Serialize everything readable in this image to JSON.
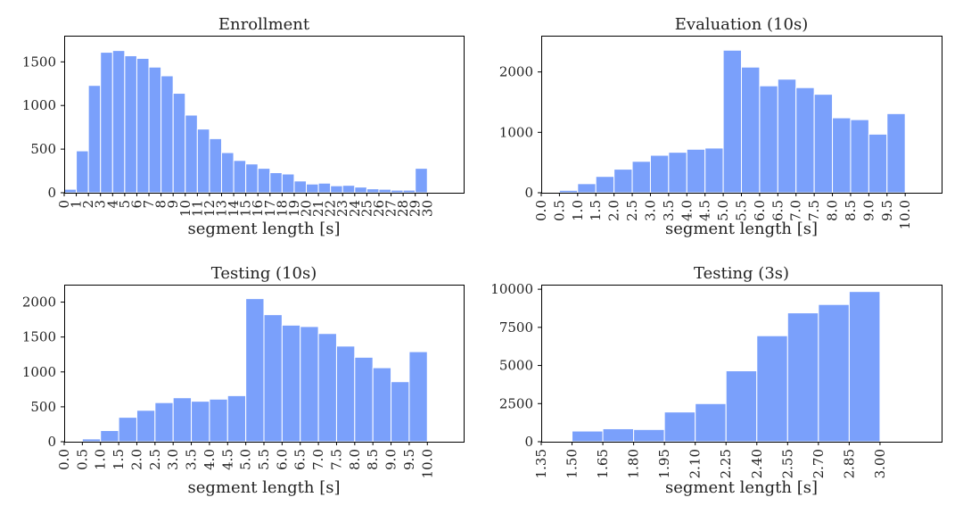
{
  "style": {
    "bar_color": "#7aa0fb"
  },
  "chart_data": [
    {
      "type": "bar",
      "title": "Enrollment",
      "xlabel": "segment length [s]",
      "ylabel": "",
      "bin_edges": [
        0,
        1,
        2,
        3,
        4,
        5,
        6,
        7,
        8,
        9,
        10,
        11,
        12,
        13,
        14,
        15,
        16,
        17,
        18,
        19,
        20,
        21,
        22,
        23,
        24,
        25,
        26,
        27,
        28,
        29,
        30
      ],
      "values": [
        40,
        480,
        1230,
        1610,
        1630,
        1570,
        1540,
        1440,
        1340,
        1140,
        890,
        730,
        620,
        460,
        370,
        330,
        280,
        230,
        215,
        135,
        100,
        110,
        80,
        85,
        65,
        45,
        40,
        30,
        30,
        280
      ],
      "xticks": [
        0,
        1,
        2,
        3,
        4,
        5,
        6,
        7,
        8,
        9,
        10,
        11,
        12,
        13,
        14,
        15,
        16,
        17,
        18,
        19,
        20,
        21,
        22,
        23,
        24,
        25,
        26,
        27,
        28,
        29,
        30
      ],
      "xticklabels": [
        "0",
        "1",
        "2",
        "3",
        "4",
        "5",
        "6",
        "7",
        "8",
        "9",
        "10",
        "11",
        "12",
        "13",
        "14",
        "15",
        "16",
        "17",
        "18",
        "19",
        "20",
        "21",
        "22",
        "23",
        "24",
        "25",
        "26",
        "27",
        "28",
        "29",
        "30"
      ],
      "xlim": [
        0,
        33
      ],
      "yticks": [
        0,
        500,
        1000,
        1500
      ],
      "yticklabels": [
        "0",
        "500",
        "1000",
        "1500"
      ],
      "ylim": [
        0,
        1800
      ],
      "grid": false
    },
    {
      "type": "bar",
      "title": "Evaluation (10s)",
      "xlabel": "segment length [s]",
      "ylabel": "",
      "bin_edges": [
        0.5,
        1.0,
        1.5,
        2.0,
        2.5,
        3.0,
        3.5,
        4.0,
        4.5,
        5.0,
        5.5,
        6.0,
        6.5,
        7.0,
        7.5,
        8.0,
        8.5,
        9.0,
        9.5,
        10.0
      ],
      "values": [
        40,
        150,
        270,
        390,
        520,
        620,
        670,
        720,
        740,
        2360,
        2080,
        1770,
        1880,
        1740,
        1630,
        1240,
        1210,
        970,
        1310
      ],
      "xticks": [
        0.0,
        0.5,
        1.0,
        1.5,
        2.0,
        2.5,
        3.0,
        3.5,
        4.0,
        4.5,
        5.0,
        5.5,
        6.0,
        6.5,
        7.0,
        7.5,
        8.0,
        8.5,
        9.0,
        9.5,
        10.0
      ],
      "xticklabels": [
        "0.0",
        "0.5",
        "1.0",
        "1.5",
        "2.0",
        "2.5",
        "3.0",
        "3.5",
        "4.0",
        "4.5",
        "5.0",
        "5.5",
        "6.0",
        "6.5",
        "7.0",
        "7.5",
        "8.0",
        "8.5",
        "9.0",
        "9.5",
        "10.0"
      ],
      "xlim": [
        0,
        11
      ],
      "yticks": [
        0,
        1000,
        2000
      ],
      "yticklabels": [
        "0",
        "1000",
        "2000"
      ],
      "ylim": [
        0,
        2600
      ],
      "grid": false
    },
    {
      "type": "bar",
      "title": "Testing (10s)",
      "xlabel": "segment length [s]",
      "ylabel": "",
      "bin_edges": [
        0.5,
        1.0,
        1.5,
        2.0,
        2.5,
        3.0,
        3.5,
        4.0,
        4.5,
        5.0,
        5.5,
        6.0,
        6.5,
        7.0,
        7.5,
        8.0,
        8.5,
        9.0,
        9.5,
        10.0
      ],
      "values": [
        40,
        160,
        350,
        450,
        560,
        630,
        580,
        610,
        660,
        2050,
        1820,
        1670,
        1650,
        1550,
        1370,
        1210,
        1060,
        860,
        1290
      ],
      "xticks": [
        0.0,
        0.5,
        1.0,
        1.5,
        2.0,
        2.5,
        3.0,
        3.5,
        4.0,
        4.5,
        5.0,
        5.5,
        6.0,
        6.5,
        7.0,
        7.5,
        8.0,
        8.5,
        9.0,
        9.5,
        10.0
      ],
      "xticklabels": [
        "0.0",
        "0.5",
        "1.0",
        "1.5",
        "2.0",
        "2.5",
        "3.0",
        "3.5",
        "4.0",
        "4.5",
        "5.0",
        "5.5",
        "6.0",
        "6.5",
        "7.0",
        "7.5",
        "8.0",
        "8.5",
        "9.0",
        "9.5",
        "10.0"
      ],
      "xlim": [
        0,
        11
      ],
      "yticks": [
        0,
        500,
        1000,
        1500,
        2000
      ],
      "yticklabels": [
        "0",
        "500",
        "1000",
        "1500",
        "2000"
      ],
      "ylim": [
        0,
        2250
      ],
      "grid": false
    },
    {
      "type": "bar",
      "title": "Testing (3s)",
      "xlabel": "segment length [s]",
      "ylabel": "",
      "bin_edges": [
        1.5,
        1.65,
        1.8,
        1.95,
        2.1,
        2.25,
        2.4,
        2.55,
        2.7,
        2.85,
        3.0
      ],
      "values": [
        700,
        850,
        800,
        1950,
        2500,
        4650,
        6950,
        8450,
        9000,
        9850
      ],
      "xticks": [
        1.35,
        1.5,
        1.65,
        1.8,
        1.95,
        2.1,
        2.25,
        2.4,
        2.55,
        2.7,
        2.85,
        3.0
      ],
      "xticklabels": [
        "1.35",
        "1.50",
        "1.65",
        "1.80",
        "1.95",
        "2.10",
        "2.25",
        "2.40",
        "2.55",
        "2.70",
        "2.85",
        "3.00"
      ],
      "xlim": [
        1.35,
        3.3
      ],
      "yticks": [
        0,
        2500,
        5000,
        7500,
        10000
      ],
      "yticklabels": [
        "0",
        "2500",
        "5000",
        "7500",
        "10000"
      ],
      "ylim": [
        0,
        10300
      ],
      "grid": false
    }
  ]
}
